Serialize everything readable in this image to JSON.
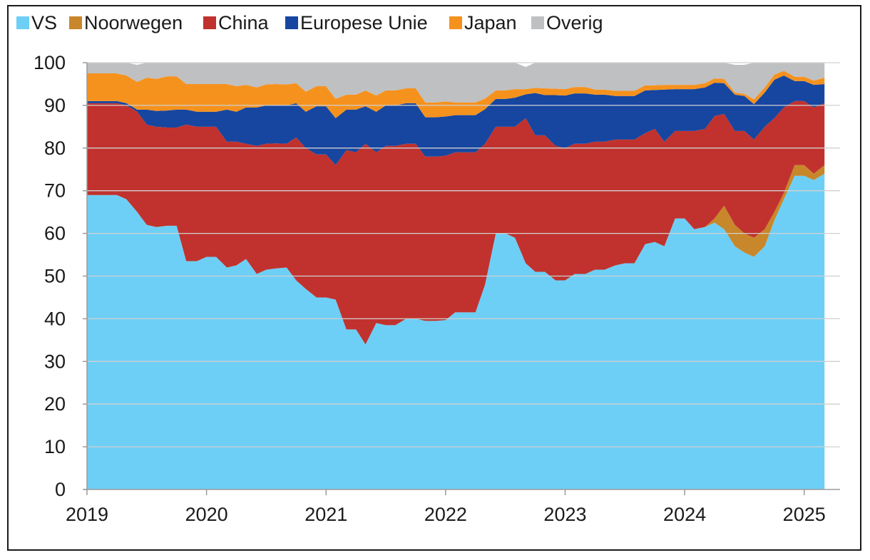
{
  "chart_data": {
    "type": "area",
    "stacked": true,
    "title": "",
    "xlabel": "",
    "ylabel": "",
    "ylim": [
      0,
      100
    ],
    "yticks": [
      "0",
      "10",
      "20",
      "30",
      "40",
      "50",
      "60",
      "70",
      "80",
      "90",
      "100"
    ],
    "xlim": [
      2019,
      2025.3
    ],
    "xticks": [
      "2019",
      "2020",
      "2021",
      "2022",
      "2023",
      "2024",
      "2025"
    ],
    "grid": "horizontal",
    "legend_position": "top",
    "x": [
      2019.0,
      2019.25,
      2019.33,
      2019.42,
      2019.5,
      2019.58,
      2019.67,
      2019.75,
      2019.83,
      2019.92,
      2020.0,
      2020.08,
      2020.17,
      2020.25,
      2020.33,
      2020.42,
      2020.5,
      2020.58,
      2020.67,
      2020.75,
      2020.83,
      2020.92,
      2021.0,
      2021.08,
      2021.17,
      2021.25,
      2021.33,
      2021.42,
      2021.5,
      2021.58,
      2021.67,
      2021.75,
      2021.83,
      2021.92,
      2022.0,
      2022.08,
      2022.17,
      2022.25,
      2022.33,
      2022.42,
      2022.5,
      2022.58,
      2022.67,
      2022.75,
      2022.83,
      2022.92,
      2023.0,
      2023.08,
      2023.17,
      2023.25,
      2023.33,
      2023.42,
      2023.5,
      2023.58,
      2023.67,
      2023.75,
      2023.83,
      2023.92,
      2024.0,
      2024.08,
      2024.17,
      2024.25,
      2024.33,
      2024.42,
      2024.5,
      2024.58,
      2024.67,
      2024.75,
      2024.83,
      2024.92,
      2025.0,
      2025.08,
      2025.17
    ],
    "series": [
      {
        "name": "VS",
        "color": "#6ecff6",
        "values": [
          69,
          69,
          68,
          65,
          62,
          61.5,
          61.8,
          61.8,
          53.5,
          53.5,
          54.5,
          54.5,
          52,
          52.5,
          54,
          50.5,
          51.5,
          51.8,
          52,
          49,
          47,
          45,
          45,
          44.5,
          37.5,
          37.5,
          34,
          39,
          38.5,
          38.5,
          40,
          40,
          39.5,
          39.5,
          39.7,
          41.5,
          41.5,
          41.5,
          48,
          60,
          60,
          59,
          53,
          51,
          51,
          49,
          49,
          50.5,
          50.5,
          51.5,
          51.5,
          52.5,
          53,
          53,
          57.5,
          58,
          57,
          63.5,
          63.5,
          61,
          61.5,
          62.5,
          61,
          57,
          55.5,
          54.5,
          57,
          63,
          68,
          73.5,
          73.5,
          72.5,
          74
        ]
      },
      {
        "name": "Noorwegen",
        "color": "#c8872a",
        "values": [
          0,
          0,
          0,
          0,
          0,
          0,
          0,
          0,
          0,
          0,
          0,
          0,
          0,
          0,
          0,
          0,
          0,
          0,
          0,
          0,
          0,
          0,
          0,
          0,
          0,
          0,
          0,
          0,
          0,
          0,
          0,
          0,
          0,
          0,
          0,
          0,
          0,
          0,
          0,
          0,
          0,
          0,
          0,
          0,
          0,
          0,
          0,
          0,
          0,
          0,
          0,
          0,
          0,
          0,
          0,
          0,
          0,
          0,
          0,
          0,
          0,
          1,
          5.5,
          5,
          4.5,
          4.5,
          4,
          2,
          1.5,
          2.5,
          2.5,
          1.5,
          2
        ]
      },
      {
        "name": "China",
        "color": "#c1322e",
        "values": [
          21.5,
          21.5,
          22,
          23.5,
          23.5,
          23.5,
          23,
          23,
          32,
          31.5,
          30.5,
          30.5,
          29.5,
          29,
          27,
          30,
          29.5,
          29.3,
          29,
          33.5,
          33,
          33.5,
          33.5,
          31.5,
          42,
          41.5,
          47,
          40,
          42,
          42,
          41,
          41,
          38.5,
          38.5,
          38.5,
          37.5,
          37.5,
          37.5,
          33,
          25,
          25,
          26,
          34,
          32,
          32,
          31.5,
          31,
          30.5,
          30.5,
          30,
          30,
          29.5,
          29,
          29,
          26,
          26.5,
          24.5,
          20.5,
          20.5,
          23,
          23,
          24,
          21.5,
          22,
          24,
          23,
          24,
          22,
          20,
          15,
          15,
          15.5,
          14.5
        ]
      },
      {
        "name": "Europese Unie",
        "color": "#1646a0",
        "values": [
          0.5,
          0.5,
          0.5,
          0.5,
          3.5,
          3.7,
          4,
          4.2,
          3.5,
          3.5,
          3.5,
          3.5,
          7.5,
          7,
          8.5,
          9,
          9,
          9,
          9,
          8,
          8.5,
          11.3,
          11.3,
          11,
          9.5,
          10,
          8.8,
          9.5,
          9.5,
          9.5,
          9.5,
          9.5,
          9.2,
          9.2,
          9.2,
          8.7,
          8.7,
          8.7,
          8.1,
          6.5,
          6.5,
          6.8,
          5.6,
          9.9,
          9.4,
          11.9,
          12.3,
          11.8,
          11.8,
          11,
          11,
          10.2,
          10.2,
          10.2,
          10,
          9.1,
          12.2,
          9.8,
          9.8,
          9.8,
          9.7,
          7.8,
          7.2,
          8.5,
          8.2,
          8.3,
          8,
          9,
          7.5,
          4.7,
          4.7,
          5.3,
          4.5
        ]
      },
      {
        "name": "Japan",
        "color": "#f5921e",
        "values": [
          6.5,
          6.5,
          6.5,
          6.5,
          7.5,
          7.5,
          8,
          7.8,
          6,
          6.5,
          6.5,
          6.5,
          6,
          6,
          5.3,
          4.7,
          4.9,
          4.9,
          4.9,
          4.7,
          4.7,
          4.7,
          4.7,
          4.5,
          3.5,
          3.5,
          3.7,
          3.8,
          3.5,
          3.5,
          3.5,
          3.5,
          3.5,
          3.5,
          3.5,
          3,
          3,
          3,
          2.5,
          2,
          2,
          2,
          1.2,
          1.2,
          1.6,
          1.5,
          1.5,
          1.5,
          1.5,
          1.2,
          1.2,
          1.2,
          1.2,
          1.2,
          1.2,
          1.1,
          1.1,
          1,
          1,
          1,
          1,
          1,
          1,
          0.5,
          0.5,
          1.1,
          1.2,
          1.2,
          1.1,
          1,
          1,
          1,
          1.5
        ]
      },
      {
        "name": "Overig",
        "color": "#bfc0c2",
        "values": [
          2.5,
          2.5,
          3,
          4,
          3.5,
          3.8,
          3.2,
          3.2,
          5,
          5,
          5,
          5,
          5,
          5.5,
          5.2,
          5.8,
          5.1,
          5,
          5.1,
          4.8,
          6.8,
          5.5,
          5.5,
          8.5,
          7.5,
          7.5,
          6.5,
          7.7,
          6.5,
          6.5,
          6,
          6,
          9.3,
          9.3,
          9.1,
          9.3,
          9.3,
          9.3,
          8.4,
          6.5,
          6.5,
          6.2,
          5.2,
          5.9,
          6,
          6.1,
          6.2,
          5.7,
          5.7,
          6.3,
          6.3,
          6.6,
          6.6,
          6.6,
          5.3,
          5.3,
          5.2,
          5.2,
          5.2,
          5.2,
          4.8,
          3.7,
          3.8,
          6.5,
          6.8,
          8.6,
          5.8,
          2.8,
          1.9,
          3.3,
          3.3,
          4.2,
          3.5
        ]
      }
    ]
  }
}
